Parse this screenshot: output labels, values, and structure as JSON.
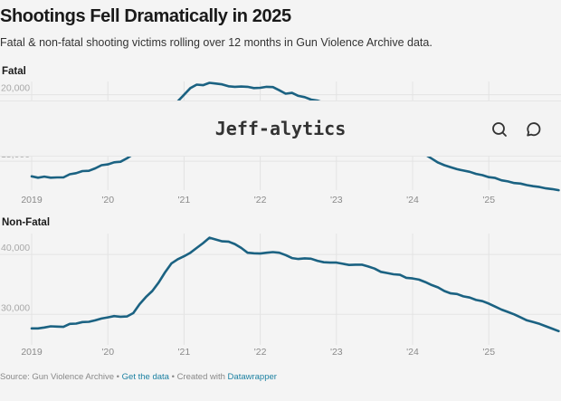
{
  "header": {
    "title": "Shootings Fell Dramatically in 2025",
    "subtitle": "Fatal & non-fatal shooting victims rolling over 12 months in Gun Violence Archive data."
  },
  "overlay": {
    "brand": "Jeff-alytics",
    "icons": [
      "search-icon",
      "comment-icon"
    ]
  },
  "footer": {
    "source": "Source: Gun Violence Archive",
    "sep": " • ",
    "get_data": "Get the data",
    "created_with": "Created with",
    "tool": "Datawrapper"
  },
  "colors": {
    "line": "#1b6282",
    "grid": "#e3e3e3",
    "tick": "#8a8a8a",
    "link": "#1d81a2"
  },
  "chart_data": [
    {
      "type": "line",
      "title": "Fatal",
      "ylabel": "",
      "xlabel": "",
      "x_ticks": [
        "2019",
        "'20",
        "'21",
        "'22",
        "'23",
        "'24",
        "'25"
      ],
      "y_ticks": [
        15000,
        20000
      ],
      "y_tick_labels": [
        "15,000",
        "20,000"
      ],
      "ylim": [
        13100,
        21000
      ],
      "xlim": [
        "2019-01",
        "2025-12"
      ],
      "grid": true,
      "series": [
        {
          "name": "Fatal victims (12-month rolling)",
          "start": "2019-01",
          "values": [
            13860,
            13760,
            13840,
            13760,
            13780,
            13780,
            14020,
            14100,
            14260,
            14280,
            14460,
            14700,
            14760,
            14920,
            14960,
            15220,
            15540,
            15960,
            16500,
            17100,
            17700,
            18300,
            18900,
            19500,
            20000,
            20500,
            20760,
            20720,
            20900,
            20840,
            20780,
            20640,
            20600,
            20620,
            20600,
            20500,
            20520,
            20600,
            20580,
            20340,
            20080,
            20140,
            19920,
            19820,
            19640,
            19560,
            19400,
            19300,
            19100,
            18900,
            18700,
            18400,
            18100,
            17800,
            17500,
            17200,
            16900,
            16600,
            16350,
            16100,
            15900,
            15700,
            15500,
            15200,
            14900,
            14700,
            14550,
            14400,
            14300,
            14200,
            14050,
            13950,
            13800,
            13740,
            13560,
            13480,
            13360,
            13320,
            13200,
            13120,
            13060,
            12960,
            12900,
            12820
          ]
        }
      ]
    },
    {
      "type": "line",
      "title": "Non-Fatal",
      "ylabel": "",
      "xlabel": "",
      "x_ticks": [
        "2019",
        "'20",
        "'21",
        "'22",
        "'23",
        "'24",
        "'25"
      ],
      "y_ticks": [
        30000,
        40000
      ],
      "y_tick_labels": [
        "30,000",
        "40,000"
      ],
      "ylim": [
        25500,
        43500
      ],
      "xlim": [
        "2019-01",
        "2025-12"
      ],
      "grid": true,
      "series": [
        {
          "name": "Non-fatal victims (12-month rolling)",
          "start": "2019-01",
          "values": [
            27650,
            27650,
            27800,
            28000,
            27950,
            27900,
            28400,
            28450,
            28700,
            28750,
            29000,
            29300,
            29500,
            29700,
            29600,
            29650,
            30200,
            31700,
            32900,
            33900,
            35300,
            37000,
            38500,
            39200,
            39700,
            40300,
            41100,
            41900,
            42800,
            42500,
            42200,
            42150,
            41750,
            41100,
            40300,
            40200,
            40150,
            40300,
            40400,
            40300,
            39900,
            39400,
            39250,
            39350,
            39300,
            38950,
            38700,
            38650,
            38650,
            38450,
            38250,
            38300,
            38300,
            38000,
            37650,
            37100,
            36900,
            36700,
            36600,
            36100,
            36000,
            35800,
            35400,
            34900,
            34500,
            33900,
            33500,
            33400,
            33000,
            32800,
            32400,
            32200,
            31800,
            31300,
            30800,
            30400,
            30000,
            29500,
            29000,
            28700,
            28400,
            28000,
            27600,
            27200
          ]
        }
      ]
    }
  ]
}
